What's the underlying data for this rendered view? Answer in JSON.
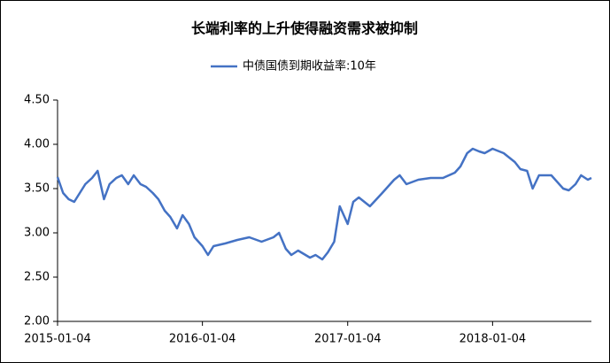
{
  "chart_data": {
    "type": "line",
    "title": "长端利率的上升使得融资需求被抑制",
    "x": [
      "2015-01-04",
      "2015-01-18",
      "2015-02-01",
      "2015-02-15",
      "2015-03-01",
      "2015-03-15",
      "2015-04-01",
      "2015-04-15",
      "2015-05-01",
      "2015-05-15",
      "2015-06-01",
      "2015-06-15",
      "2015-07-01",
      "2015-07-15",
      "2015-08-01",
      "2015-08-15",
      "2015-09-01",
      "2015-09-15",
      "2015-10-01",
      "2015-10-15",
      "2015-11-01",
      "2015-11-15",
      "2015-12-01",
      "2015-12-15",
      "2016-01-04",
      "2016-01-18",
      "2016-02-01",
      "2016-03-01",
      "2016-04-01",
      "2016-05-01",
      "2016-06-01",
      "2016-07-01",
      "2016-07-15",
      "2016-08-01",
      "2016-08-15",
      "2016-09-01",
      "2016-10-01",
      "2016-10-15",
      "2016-11-01",
      "2016-11-15",
      "2016-12-01",
      "2016-12-15",
      "2017-01-04",
      "2017-01-18",
      "2017-02-01",
      "2017-03-01",
      "2017-04-01",
      "2017-05-01",
      "2017-05-15",
      "2017-06-01",
      "2017-07-01",
      "2017-08-01",
      "2017-09-01",
      "2017-10-01",
      "2017-10-15",
      "2017-11-01",
      "2017-11-15",
      "2017-12-01",
      "2017-12-15",
      "2018-01-04",
      "2018-02-01",
      "2018-03-01",
      "2018-03-15",
      "2018-04-01",
      "2018-04-15",
      "2018-05-01",
      "2018-06-01",
      "2018-07-01",
      "2018-07-15",
      "2018-08-01",
      "2018-08-15",
      "2018-09-01",
      "2018-09-10"
    ],
    "series": [
      {
        "name": "中债国债到期收益率:10年",
        "color": "#4472c4",
        "values": [
          3.63,
          3.45,
          3.38,
          3.35,
          3.45,
          3.55,
          3.62,
          3.7,
          3.38,
          3.55,
          3.62,
          3.65,
          3.55,
          3.65,
          3.55,
          3.52,
          3.45,
          3.38,
          3.25,
          3.18,
          3.05,
          3.2,
          3.1,
          2.95,
          2.85,
          2.75,
          2.85,
          2.88,
          2.92,
          2.95,
          2.9,
          2.95,
          3.0,
          2.82,
          2.75,
          2.8,
          2.72,
          2.75,
          2.7,
          2.78,
          2.9,
          3.3,
          3.1,
          3.35,
          3.4,
          3.3,
          3.45,
          3.6,
          3.65,
          3.55,
          3.6,
          3.62,
          3.62,
          3.68,
          3.75,
          3.9,
          3.95,
          3.92,
          3.9,
          3.95,
          3.9,
          3.8,
          3.72,
          3.7,
          3.5,
          3.65,
          3.65,
          3.5,
          3.48,
          3.55,
          3.65,
          3.6,
          3.62
        ]
      }
    ],
    "xlim": [
      "2015-01-04",
      "2018-09-10"
    ],
    "xticks": [
      "2015-01-04",
      "2016-01-04",
      "2017-01-04",
      "2018-01-04"
    ],
    "ylim": [
      2,
      4.5
    ],
    "yticks": [
      {
        "value": 2,
        "label": "2.00"
      },
      {
        "value": 2.5,
        "label": "2.50"
      },
      {
        "value": 3,
        "label": "3.00"
      },
      {
        "value": 3.5,
        "label": "3.50"
      },
      {
        "value": 4,
        "label": "4.00"
      },
      {
        "value": 4.5,
        "label": "4.50"
      }
    ],
    "grid": false
  }
}
